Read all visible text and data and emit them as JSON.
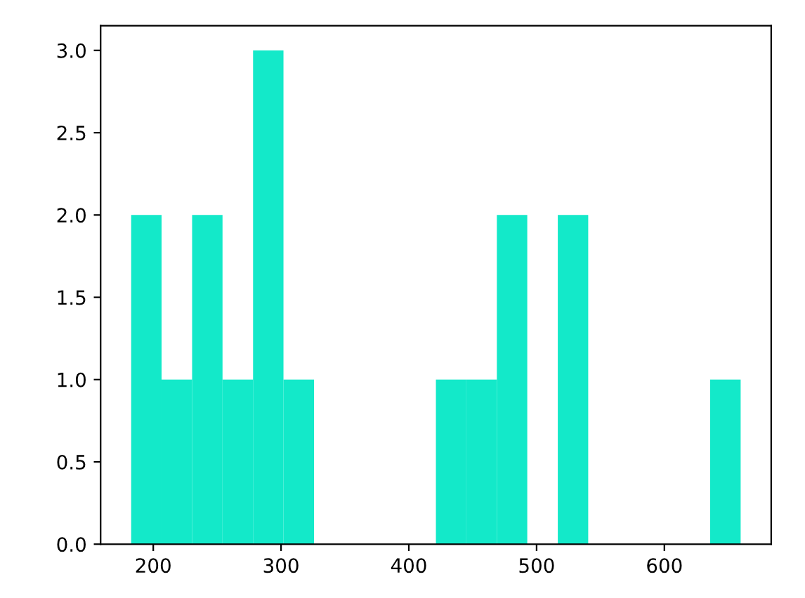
{
  "chart_data": {
    "type": "histogram",
    "bins": [
      182.7,
      206.5,
      230.4,
      254.2,
      278.1,
      301.9,
      325.8,
      349.6,
      373.5,
      397.3,
      421.2,
      445.0,
      468.9,
      492.7,
      516.6,
      540.4,
      564.3,
      588.1,
      612.0,
      635.8,
      659.7
    ],
    "values": [
      2,
      1,
      2,
      1,
      3,
      1,
      0,
      0,
      0,
      0,
      1,
      1,
      2,
      0,
      2,
      0,
      0,
      0,
      0,
      1
    ],
    "color": "#13e9c9",
    "xlim": [
      158.8,
      683.6
    ],
    "xticks": [
      200,
      300,
      400,
      500,
      600
    ],
    "ylim": [
      0,
      3.15
    ],
    "yticks": [
      {
        "value": 0,
        "label": "0.0"
      },
      {
        "value": 0.5,
        "label": "0.5"
      },
      {
        "value": 1,
        "label": "1.0"
      },
      {
        "value": 1.5,
        "label": "1.5"
      },
      {
        "value": 2,
        "label": "2.0"
      },
      {
        "value": 2.5,
        "label": "2.5"
      },
      {
        "value": 3,
        "label": "3.0"
      }
    ],
    "grid": false
  }
}
